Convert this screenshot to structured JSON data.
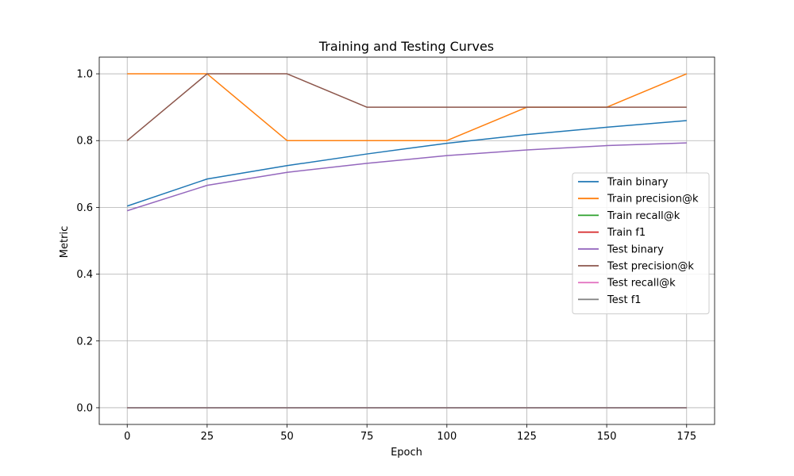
{
  "chart_data": {
    "type": "line",
    "title": "Training and Testing Curves",
    "xlabel": "Epoch",
    "ylabel": "Metric",
    "x": [
      0,
      25,
      50,
      75,
      100,
      125,
      150,
      175
    ],
    "xlim": [
      -8.75,
      183.75
    ],
    "ylim": [
      -0.05,
      1.05
    ],
    "xticks": [
      0,
      25,
      50,
      75,
      100,
      125,
      150,
      175
    ],
    "yticks": [
      0.0,
      0.2,
      0.4,
      0.6,
      0.8,
      1.0
    ],
    "xtick_labels": [
      "0",
      "25",
      "50",
      "75",
      "100",
      "125",
      "150",
      "175"
    ],
    "ytick_labels": [
      "0.0",
      "0.2",
      "0.4",
      "0.6",
      "0.8",
      "1.0"
    ],
    "grid": true,
    "legend_position": "center-right",
    "series": [
      {
        "name": "Train binary",
        "color": "#1f77b4",
        "values": [
          0.604,
          0.685,
          0.725,
          0.76,
          0.792,
          0.818,
          0.84,
          0.86
        ]
      },
      {
        "name": "Train precision@k",
        "color": "#ff7f0e",
        "values": [
          1.0,
          1.0,
          0.8,
          0.8,
          0.8,
          0.9,
          0.9,
          1.0
        ]
      },
      {
        "name": "Train recall@k",
        "color": "#2ca02c",
        "values": [
          0,
          0,
          0,
          0,
          0,
          0,
          0,
          0
        ]
      },
      {
        "name": "Train f1",
        "color": "#d62728",
        "values": [
          0,
          0,
          0,
          0,
          0,
          0,
          0,
          0
        ]
      },
      {
        "name": "Test binary",
        "color": "#9467bd",
        "values": [
          0.59,
          0.666,
          0.705,
          0.732,
          0.755,
          0.772,
          0.785,
          0.793
        ]
      },
      {
        "name": "Test precision@k",
        "color": "#8c564b",
        "values": [
          0.8,
          1.0,
          1.0,
          0.9,
          0.9,
          0.9,
          0.9,
          0.9
        ]
      },
      {
        "name": "Test recall@k",
        "color": "#e377c2",
        "values": [
          0,
          0,
          0,
          0,
          0,
          0,
          0,
          0
        ]
      },
      {
        "name": "Test f1",
        "color": "#7f7f7f",
        "values": [
          0,
          0,
          0,
          0,
          0,
          0,
          0,
          0
        ]
      }
    ]
  }
}
